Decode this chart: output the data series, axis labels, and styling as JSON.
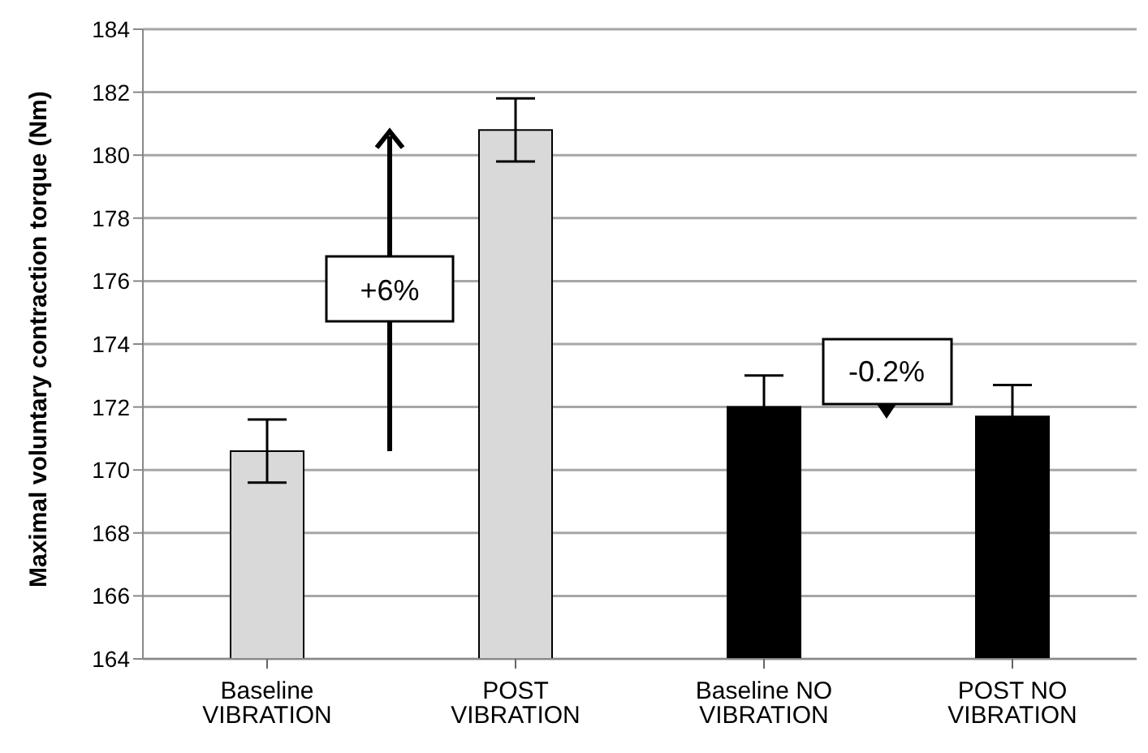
{
  "chart_data": {
    "type": "bar",
    "ylabel": "Maximal voluntary contraction torque (Nm)",
    "categories": [
      "Baseline VIBRATION",
      "POST VIBRATION",
      "Baseline NO VIBRATION",
      "POST NO VIBRATION"
    ],
    "values": [
      170.6,
      180.8,
      172.0,
      171.7
    ],
    "colors": [
      "#d9d9d9",
      "#d9d9d9",
      "#000000",
      "#000000"
    ],
    "errors": [
      1.0,
      1.0,
      1.0,
      1.0
    ],
    "ylim": [
      164,
      184
    ],
    "yticks": [
      164,
      166,
      168,
      170,
      172,
      174,
      176,
      178,
      180,
      182,
      184
    ],
    "grid": "y",
    "annotations": [
      "+6%",
      "-0.2%"
    ]
  }
}
